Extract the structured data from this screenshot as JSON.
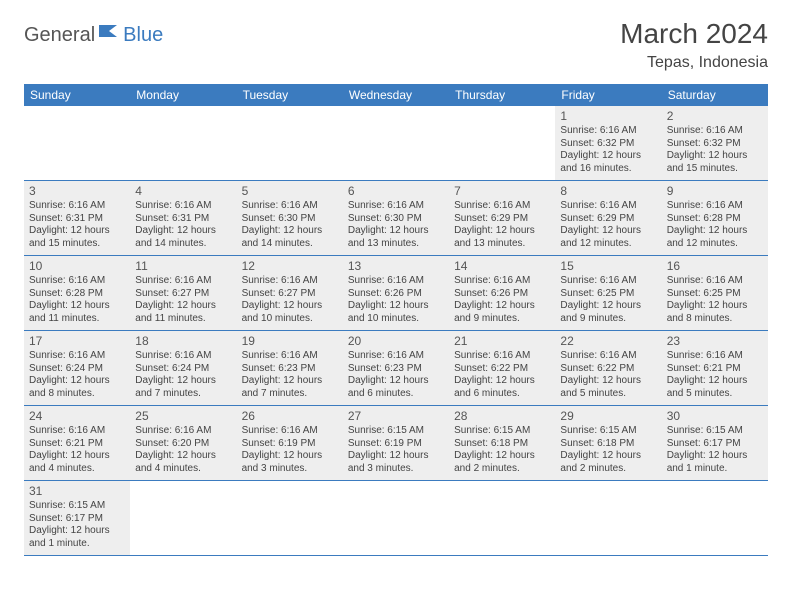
{
  "brand": {
    "part1": "General",
    "part2": "Blue"
  },
  "title": "March 2024",
  "location": "Tepas, Indonesia",
  "colors": {
    "header_bg": "#3b7bbf",
    "header_text": "#ffffff",
    "shaded_bg": "#eeeeee",
    "border": "#3b7bbf",
    "text": "#444444"
  },
  "dow": [
    "Sunday",
    "Monday",
    "Tuesday",
    "Wednesday",
    "Thursday",
    "Friday",
    "Saturday"
  ],
  "weeks": [
    [
      null,
      null,
      null,
      null,
      null,
      {
        "n": "1",
        "sr": "Sunrise: 6:16 AM",
        "ss": "Sunset: 6:32 PM",
        "d1": "Daylight: 12 hours",
        "d2": "and 16 minutes."
      },
      {
        "n": "2",
        "sr": "Sunrise: 6:16 AM",
        "ss": "Sunset: 6:32 PM",
        "d1": "Daylight: 12 hours",
        "d2": "and 15 minutes."
      }
    ],
    [
      {
        "n": "3",
        "sr": "Sunrise: 6:16 AM",
        "ss": "Sunset: 6:31 PM",
        "d1": "Daylight: 12 hours",
        "d2": "and 15 minutes."
      },
      {
        "n": "4",
        "sr": "Sunrise: 6:16 AM",
        "ss": "Sunset: 6:31 PM",
        "d1": "Daylight: 12 hours",
        "d2": "and 14 minutes."
      },
      {
        "n": "5",
        "sr": "Sunrise: 6:16 AM",
        "ss": "Sunset: 6:30 PM",
        "d1": "Daylight: 12 hours",
        "d2": "and 14 minutes."
      },
      {
        "n": "6",
        "sr": "Sunrise: 6:16 AM",
        "ss": "Sunset: 6:30 PM",
        "d1": "Daylight: 12 hours",
        "d2": "and 13 minutes."
      },
      {
        "n": "7",
        "sr": "Sunrise: 6:16 AM",
        "ss": "Sunset: 6:29 PM",
        "d1": "Daylight: 12 hours",
        "d2": "and 13 minutes."
      },
      {
        "n": "8",
        "sr": "Sunrise: 6:16 AM",
        "ss": "Sunset: 6:29 PM",
        "d1": "Daylight: 12 hours",
        "d2": "and 12 minutes."
      },
      {
        "n": "9",
        "sr": "Sunrise: 6:16 AM",
        "ss": "Sunset: 6:28 PM",
        "d1": "Daylight: 12 hours",
        "d2": "and 12 minutes."
      }
    ],
    [
      {
        "n": "10",
        "sr": "Sunrise: 6:16 AM",
        "ss": "Sunset: 6:28 PM",
        "d1": "Daylight: 12 hours",
        "d2": "and 11 minutes."
      },
      {
        "n": "11",
        "sr": "Sunrise: 6:16 AM",
        "ss": "Sunset: 6:27 PM",
        "d1": "Daylight: 12 hours",
        "d2": "and 11 minutes."
      },
      {
        "n": "12",
        "sr": "Sunrise: 6:16 AM",
        "ss": "Sunset: 6:27 PM",
        "d1": "Daylight: 12 hours",
        "d2": "and 10 minutes."
      },
      {
        "n": "13",
        "sr": "Sunrise: 6:16 AM",
        "ss": "Sunset: 6:26 PM",
        "d1": "Daylight: 12 hours",
        "d2": "and 10 minutes."
      },
      {
        "n": "14",
        "sr": "Sunrise: 6:16 AM",
        "ss": "Sunset: 6:26 PM",
        "d1": "Daylight: 12 hours",
        "d2": "and 9 minutes."
      },
      {
        "n": "15",
        "sr": "Sunrise: 6:16 AM",
        "ss": "Sunset: 6:25 PM",
        "d1": "Daylight: 12 hours",
        "d2": "and 9 minutes."
      },
      {
        "n": "16",
        "sr": "Sunrise: 6:16 AM",
        "ss": "Sunset: 6:25 PM",
        "d1": "Daylight: 12 hours",
        "d2": "and 8 minutes."
      }
    ],
    [
      {
        "n": "17",
        "sr": "Sunrise: 6:16 AM",
        "ss": "Sunset: 6:24 PM",
        "d1": "Daylight: 12 hours",
        "d2": "and 8 minutes."
      },
      {
        "n": "18",
        "sr": "Sunrise: 6:16 AM",
        "ss": "Sunset: 6:24 PM",
        "d1": "Daylight: 12 hours",
        "d2": "and 7 minutes."
      },
      {
        "n": "19",
        "sr": "Sunrise: 6:16 AM",
        "ss": "Sunset: 6:23 PM",
        "d1": "Daylight: 12 hours",
        "d2": "and 7 minutes."
      },
      {
        "n": "20",
        "sr": "Sunrise: 6:16 AM",
        "ss": "Sunset: 6:23 PM",
        "d1": "Daylight: 12 hours",
        "d2": "and 6 minutes."
      },
      {
        "n": "21",
        "sr": "Sunrise: 6:16 AM",
        "ss": "Sunset: 6:22 PM",
        "d1": "Daylight: 12 hours",
        "d2": "and 6 minutes."
      },
      {
        "n": "22",
        "sr": "Sunrise: 6:16 AM",
        "ss": "Sunset: 6:22 PM",
        "d1": "Daylight: 12 hours",
        "d2": "and 5 minutes."
      },
      {
        "n": "23",
        "sr": "Sunrise: 6:16 AM",
        "ss": "Sunset: 6:21 PM",
        "d1": "Daylight: 12 hours",
        "d2": "and 5 minutes."
      }
    ],
    [
      {
        "n": "24",
        "sr": "Sunrise: 6:16 AM",
        "ss": "Sunset: 6:21 PM",
        "d1": "Daylight: 12 hours",
        "d2": "and 4 minutes."
      },
      {
        "n": "25",
        "sr": "Sunrise: 6:16 AM",
        "ss": "Sunset: 6:20 PM",
        "d1": "Daylight: 12 hours",
        "d2": "and 4 minutes."
      },
      {
        "n": "26",
        "sr": "Sunrise: 6:16 AM",
        "ss": "Sunset: 6:19 PM",
        "d1": "Daylight: 12 hours",
        "d2": "and 3 minutes."
      },
      {
        "n": "27",
        "sr": "Sunrise: 6:15 AM",
        "ss": "Sunset: 6:19 PM",
        "d1": "Daylight: 12 hours",
        "d2": "and 3 minutes."
      },
      {
        "n": "28",
        "sr": "Sunrise: 6:15 AM",
        "ss": "Sunset: 6:18 PM",
        "d1": "Daylight: 12 hours",
        "d2": "and 2 minutes."
      },
      {
        "n": "29",
        "sr": "Sunrise: 6:15 AM",
        "ss": "Sunset: 6:18 PM",
        "d1": "Daylight: 12 hours",
        "d2": "and 2 minutes."
      },
      {
        "n": "30",
        "sr": "Sunrise: 6:15 AM",
        "ss": "Sunset: 6:17 PM",
        "d1": "Daylight: 12 hours",
        "d2": "and 1 minute."
      }
    ],
    [
      {
        "n": "31",
        "sr": "Sunrise: 6:15 AM",
        "ss": "Sunset: 6:17 PM",
        "d1": "Daylight: 12 hours",
        "d2": "and 1 minute."
      },
      null,
      null,
      null,
      null,
      null,
      null
    ]
  ]
}
